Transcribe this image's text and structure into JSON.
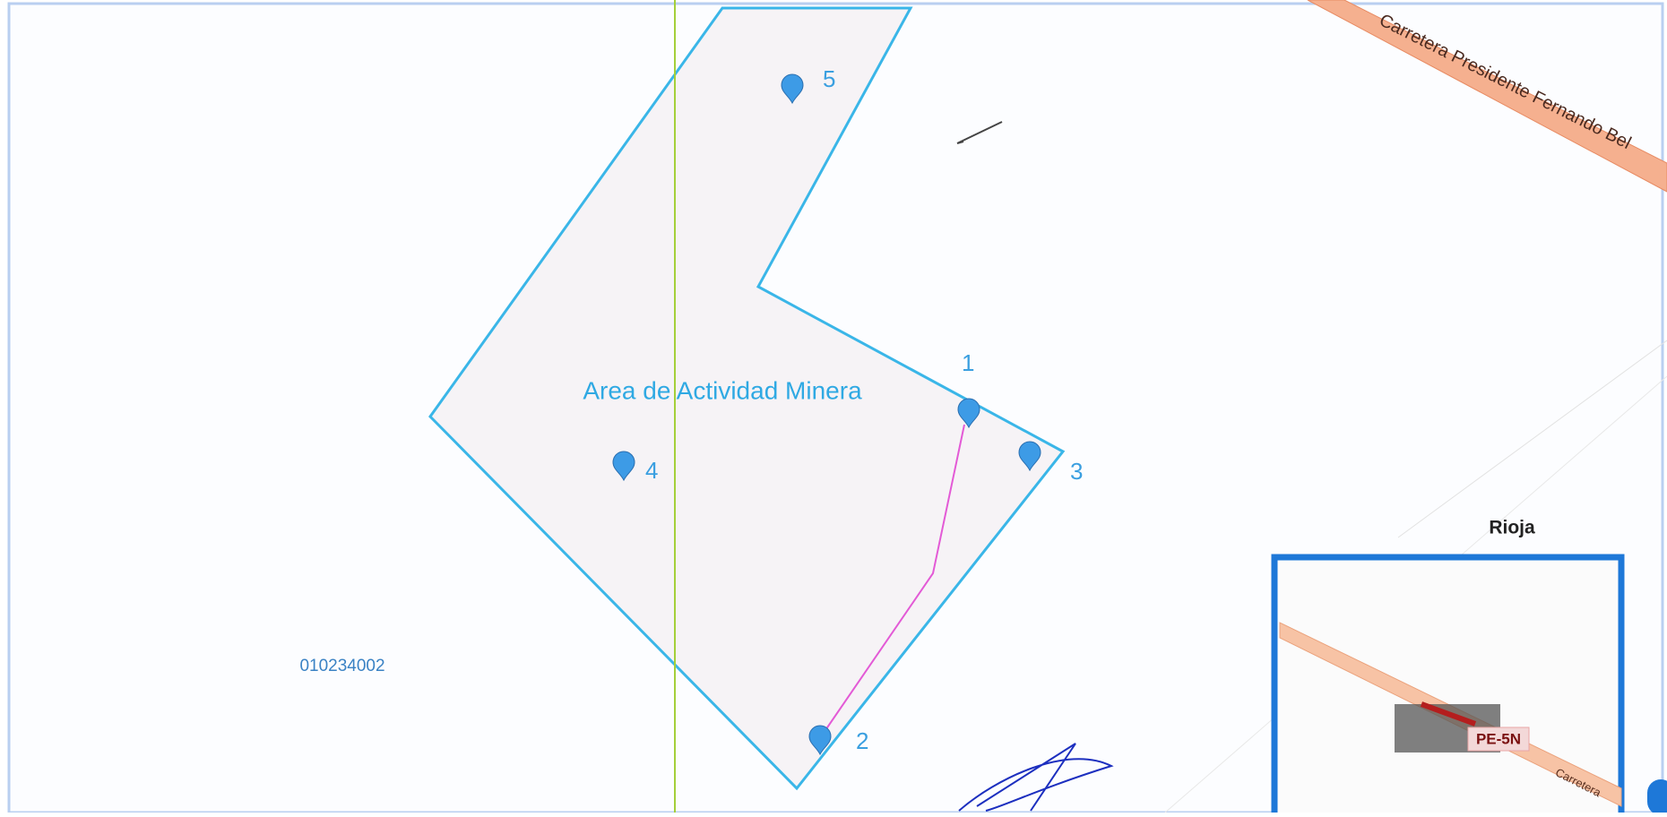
{
  "map": {
    "area_label": "Area de Actividad Minera",
    "points": [
      {
        "label": "1"
      },
      {
        "label": "2"
      },
      {
        "label": "3"
      },
      {
        "label": "4"
      },
      {
        "label": "5"
      }
    ],
    "parcel_code": "010234002",
    "road_name": "Carretera Presidente Fernando Bel",
    "town": "Rioja",
    "inset": {
      "route": "PE-5N",
      "road": "Carretera"
    }
  }
}
